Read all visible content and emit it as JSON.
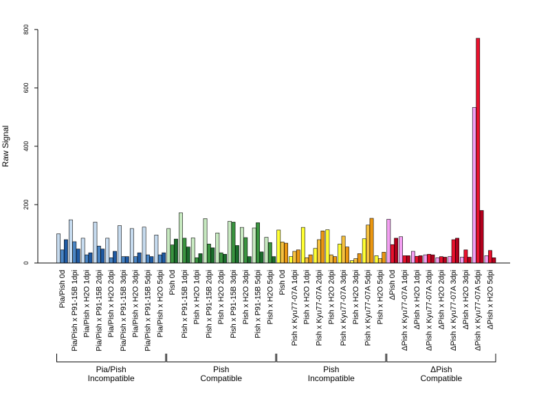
{
  "colors": {
    "pia_pish": [
      "#c6dbef",
      "#4a85c4",
      "#1f5aa3"
    ],
    "pish_compatible": [
      "#c7e9c0",
      "#3a9440",
      "#1b6c2c"
    ],
    "pish_incompatible": [
      "#ffff33",
      "#f6c140",
      "#eb9711"
    ],
    "dpish_compatible": [
      "#f39ff2",
      "#e8112d",
      "#b2001d"
    ],
    "axis": "#000000",
    "bar_edge": "#000000"
  },
  "chart_data": {
    "type": "bar",
    "title": "",
    "xlabel": "",
    "ylabel": "Raw Signal",
    "ylim": [
      0,
      800
    ],
    "yticks": [
      0,
      200,
      400,
      600,
      800
    ],
    "grid": false,
    "legend": "none",
    "categories": [
      "Pia/Pish 0d",
      "Pia/Pish x P91-15B 1dpi",
      "Pia/Pish x H2O 1dpi",
      "Pia/Pish x P91-15B 2dpi",
      "Pia/Pish x H2O 2dpi",
      "Pia/Pish x P91-15B 3dpi",
      "Pia/Pish x H2O 3dpi",
      "Pia/Pish x P91-15B 5dpi",
      "Pia/Pish x H2O 5dpi",
      "Pish 0d",
      "Pish x P91-15B 1dpi",
      "Pish x H2O 1dpi",
      "Pish x P91-15B 2dpi",
      "Pish x H2O 2dpi",
      "Pish x P91-15B 3dpi",
      "Pish x H2O 3dpi",
      "Pish x P91-15B 5dpi",
      "Pish x H2O 5dpi",
      "Pish 0d",
      "Pish x Kyu77-07A 1dpi",
      "Pish x H2O 1dpi",
      "Pish x Kyu77-07A 2dpi",
      "Pish x H2O 2dpi",
      "Pish x Kyu77-07A 3dpi",
      "Pish x H2O 3dpi",
      "Pish x Kyu77-07A 5dpi",
      "Pish x H2O 5dpi",
      "ΔPish 0d",
      "ΔPish x Kyu77-07A 1dpi",
      "ΔPish x H2O 1dpi",
      "ΔPish x Kyu77-07A 2dpi",
      "ΔPish x H2O 2dpi",
      "ΔPish x Kyu77-07A 3dpi",
      "ΔPish x H2O 3dpi",
      "ΔPish x Kyu77-07A 5dpi",
      "ΔPish x H2O 5dpi"
    ],
    "replicate_values": [
      [
        100,
        45,
        80
      ],
      [
        148,
        73,
        48
      ],
      [
        85,
        28,
        35
      ],
      [
        140,
        58,
        48
      ],
      [
        85,
        18,
        40
      ],
      [
        128,
        22,
        22
      ],
      [
        118,
        22,
        35
      ],
      [
        123,
        28,
        22
      ],
      [
        96,
        28,
        35
      ],
      [
        118,
        62,
        82
      ],
      [
        172,
        85,
        55
      ],
      [
        86,
        18,
        32
      ],
      [
        152,
        65,
        52
      ],
      [
        103,
        35,
        30
      ],
      [
        143,
        140,
        60
      ],
      [
        122,
        87,
        22
      ],
      [
        120,
        138,
        38
      ],
      [
        88,
        70,
        22
      ],
      [
        113,
        72,
        68
      ],
      [
        22,
        40,
        45
      ],
      [
        122,
        18,
        28
      ],
      [
        50,
        80,
        110
      ],
      [
        114,
        28,
        22
      ],
      [
        65,
        92,
        55
      ],
      [
        8,
        15,
        32
      ],
      [
        83,
        130,
        153
      ],
      [
        25,
        15,
        37
      ],
      [
        150,
        63,
        85
      ],
      [
        90,
        25,
        25
      ],
      [
        40,
        23,
        25
      ],
      [
        28,
        30,
        28
      ],
      [
        18,
        22,
        20
      ],
      [
        22,
        80,
        85
      ],
      [
        20,
        45,
        20
      ],
      [
        533,
        770,
        180
      ],
      [
        25,
        43,
        18
      ]
    ],
    "groups": [
      {
        "label_line1": "Pia/Pish",
        "label_line2": "Incompatible",
        "start": 0,
        "end": 8,
        "color_key": "pia_pish"
      },
      {
        "label_line1": "Pish",
        "label_line2": "Compatible",
        "start": 9,
        "end": 17,
        "color_key": "pish_compatible"
      },
      {
        "label_line1": "Pish",
        "label_line2": "Incompatible",
        "start": 18,
        "end": 26,
        "color_key": "pish_incompatible"
      },
      {
        "label_line1": "ΔPish",
        "label_line2": "Compatible",
        "start": 27,
        "end": 35,
        "color_key": "dpish_compatible"
      }
    ]
  }
}
